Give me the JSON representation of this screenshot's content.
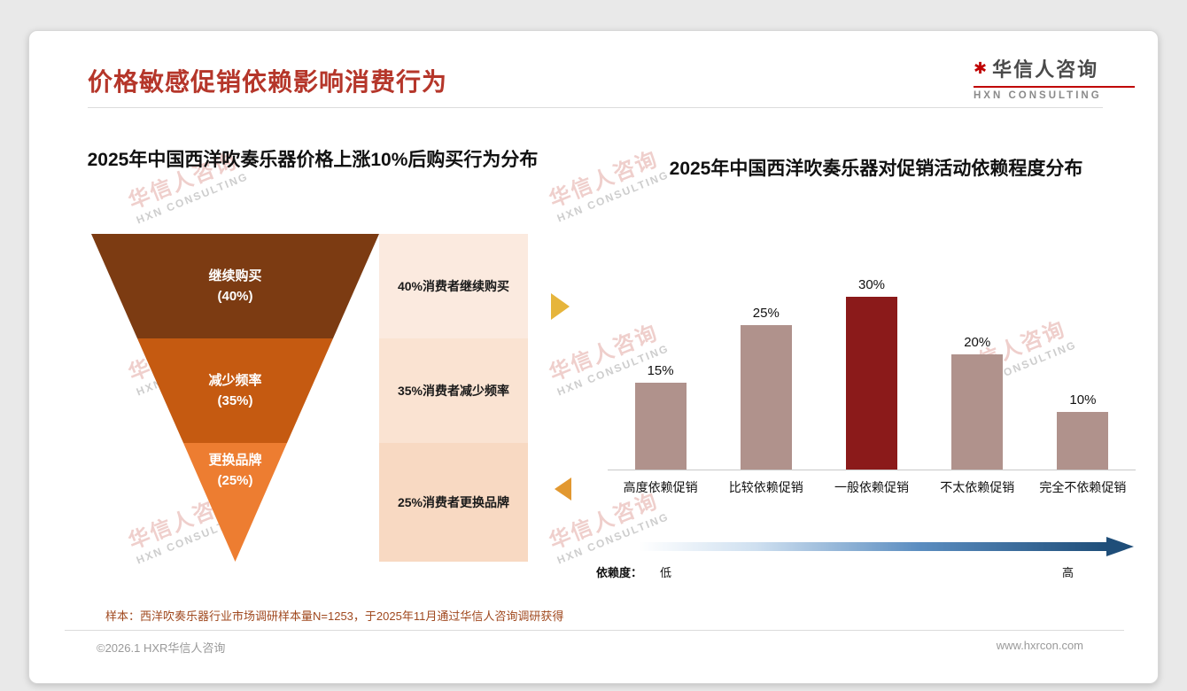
{
  "slide": {
    "title": "价格敏感促销依赖影响消费行为",
    "sample_note": "样本：西洋吹奏乐器行业市场调研样本量N=1253，于2025年11月通过华信人咨询调研获得",
    "footer_left": "©2026.1 HXR华信人咨询",
    "footer_right": "www.hxrcon.com"
  },
  "logo": {
    "mark": "✱",
    "zh": "华信人咨询",
    "en": "HXN CONSULTING"
  },
  "watermark": {
    "zh": "华信人咨询",
    "en": "HXN CONSULTING"
  },
  "colors": {
    "title_red": "#B5362A",
    "note_brown": "#A0491F",
    "arrow_gold": "#E6B53C",
    "arrow_orange": "#E29830",
    "annotation_bg": [
      "#FBEADF",
      "#FAE3D2",
      "#F8D9C2"
    ],
    "gradient_start": "#FFFFFF",
    "gradient_end": "#1F4E79"
  },
  "chart_data": [
    {
      "type": "funnel",
      "title": "2025年中国西洋吹奏乐器价格上涨10%后购买行为分布",
      "stages": [
        {
          "label": "继续购买",
          "value": 40,
          "value_label": "(40%)",
          "annotation": "40%消费者继续购买",
          "color": "#7C3B12"
        },
        {
          "label": "减少频率",
          "value": 35,
          "value_label": "(35%)",
          "annotation": "35%消费者减少频率",
          "color": "#C55A11"
        },
        {
          "label": "更换品牌",
          "value": 25,
          "value_label": "(25%)",
          "annotation": "25%消费者更换品牌",
          "color": "#ED7D31"
        }
      ]
    },
    {
      "type": "bar",
      "title": "2025年中国西洋吹奏乐器对促销活动依赖程度分布",
      "categories": [
        "高度依赖促销",
        "比较依赖促销",
        "一般依赖促销",
        "不太依赖促销",
        "完全不依赖促销"
      ],
      "values": [
        15,
        25,
        30,
        20,
        10
      ],
      "value_labels": [
        "15%",
        "25%",
        "30%",
        "20%",
        "10%"
      ],
      "highlight_index": 2,
      "bar_color": "#B0928C",
      "highlight_color": "#8B1A1A",
      "ylim": [
        0,
        33
      ],
      "grid": false,
      "legend": "none",
      "gradient_axis": {
        "label": "依赖度：",
        "low": "低",
        "high": "高"
      }
    }
  ]
}
